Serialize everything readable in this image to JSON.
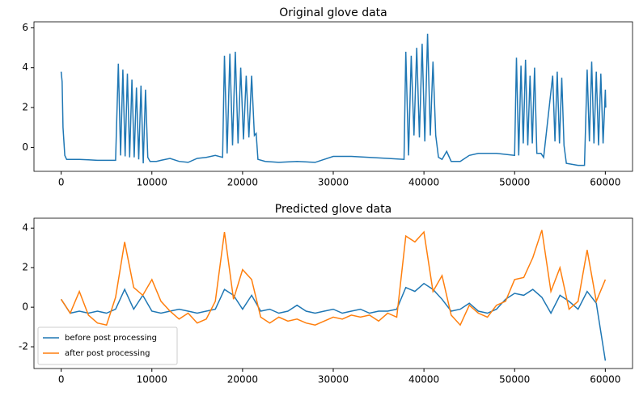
{
  "chart_data": [
    {
      "type": "line",
      "title": "Original glove data",
      "color": "#1f77b4",
      "x": [
        0,
        100,
        200,
        400,
        600,
        1000,
        2000,
        3000,
        4000,
        5000,
        6000,
        6300,
        6550,
        6800,
        7050,
        7300,
        7550,
        7800,
        8050,
        8300,
        8550,
        8800,
        9050,
        9300,
        9550,
        9800,
        10500,
        11000,
        12000,
        13000,
        14000,
        15000,
        16000,
        17000,
        17800,
        18000,
        18300,
        18600,
        18900,
        19200,
        19500,
        19800,
        20100,
        20400,
        20700,
        21000,
        21300,
        21500,
        21700,
        22500,
        24000,
        26000,
        28000,
        30000,
        32000,
        34000,
        36000,
        37800,
        38000,
        38300,
        38600,
        38900,
        39200,
        39500,
        39800,
        40100,
        40400,
        40700,
        41000,
        41300,
        41600,
        42000,
        42500,
        43000,
        44000,
        45000,
        46000,
        48000,
        50000,
        50200,
        50450,
        50700,
        50950,
        51200,
        51450,
        51700,
        51950,
        52200,
        52450,
        52900,
        53200,
        54200,
        54450,
        54700,
        54950,
        55200,
        55450,
        55700,
        57000,
        57700,
        58000,
        58250,
        58500,
        58750,
        59000,
        59250,
        59500,
        59750,
        60000,
        60050
      ],
      "values": [
        3.8,
        3.3,
        1.0,
        -0.4,
        -0.6,
        -0.6,
        -0.6,
        -0.62,
        -0.65,
        -0.65,
        -0.65,
        4.2,
        -0.4,
        3.9,
        -0.45,
        3.7,
        -0.5,
        3.4,
        -0.5,
        3.0,
        -0.6,
        3.1,
        -0.8,
        2.9,
        -0.5,
        -0.7,
        -0.7,
        -0.65,
        -0.55,
        -0.7,
        -0.75,
        -0.55,
        -0.5,
        -0.4,
        -0.5,
        4.6,
        -0.3,
        4.7,
        0.1,
        4.8,
        0.2,
        4.0,
        0.4,
        3.6,
        0.5,
        3.6,
        0.6,
        0.7,
        -0.6,
        -0.7,
        -0.75,
        -0.7,
        -0.75,
        -0.45,
        -0.45,
        -0.5,
        -0.55,
        -0.6,
        4.8,
        -0.4,
        4.6,
        0.6,
        5.0,
        0.5,
        5.2,
        0.3,
        5.7,
        0.6,
        4.3,
        0.6,
        -0.5,
        -0.6,
        -0.2,
        -0.7,
        -0.7,
        -0.4,
        -0.3,
        -0.3,
        -0.4,
        4.5,
        -0.4,
        4.1,
        0.2,
        4.4,
        0.1,
        3.6,
        0.2,
        4.0,
        -0.3,
        -0.3,
        -0.5,
        3.6,
        0.3,
        3.8,
        0.2,
        3.5,
        0.1,
        -0.8,
        -0.9,
        -0.9,
        3.9,
        0.3,
        4.3,
        0.2,
        3.8,
        0.1,
        3.7,
        0.2,
        2.9,
        2.0
      ],
      "xlim": [
        -3000,
        63000
      ],
      "xticks": [
        0,
        10000,
        20000,
        30000,
        40000,
        50000,
        60000
      ],
      "ylim": [
        -1.2,
        6.3
      ],
      "yticks": [
        0,
        2,
        4,
        6
      ]
    },
    {
      "type": "line",
      "title": "Predicted glove data",
      "legend": "lower left",
      "x": [
        0,
        1000,
        2000,
        3000,
        4000,
        5000,
        6000,
        7000,
        8000,
        9000,
        10000,
        11000,
        12000,
        13000,
        14000,
        15000,
        16000,
        17000,
        18000,
        19000,
        20000,
        21000,
        22000,
        23000,
        24000,
        25000,
        26000,
        27000,
        28000,
        29000,
        30000,
        31000,
        32000,
        33000,
        34000,
        35000,
        36000,
        37000,
        38000,
        39000,
        40000,
        41000,
        42000,
        43000,
        44000,
        45000,
        46000,
        47000,
        48000,
        49000,
        50000,
        51000,
        52000,
        53000,
        54000,
        55000,
        56000,
        57000,
        58000,
        59000,
        60000
      ],
      "series": [
        {
          "name": "before post processing",
          "color": "#1f77b4",
          "values": [
            0.4,
            -0.3,
            -0.2,
            -0.3,
            -0.2,
            -0.3,
            -0.1,
            0.9,
            -0.1,
            0.6,
            -0.2,
            -0.3,
            -0.2,
            -0.1,
            -0.2,
            -0.3,
            -0.2,
            -0.1,
            0.9,
            0.6,
            -0.1,
            0.6,
            -0.2,
            -0.1,
            -0.3,
            -0.2,
            0.1,
            -0.2,
            -0.3,
            -0.2,
            -0.1,
            -0.3,
            -0.2,
            -0.1,
            -0.3,
            -0.2,
            -0.2,
            -0.1,
            1.0,
            0.8,
            1.2,
            0.9,
            0.4,
            -0.2,
            -0.1,
            0.2,
            -0.2,
            -0.3,
            -0.1,
            0.4,
            0.7,
            0.6,
            0.9,
            0.5,
            -0.3,
            0.6,
            0.3,
            -0.1,
            0.8,
            0.2,
            -2.7
          ]
        },
        {
          "name": "after post processing",
          "color": "#ff7f0e",
          "values": [
            0.4,
            -0.3,
            0.8,
            -0.4,
            -0.8,
            -0.9,
            0.5,
            3.3,
            1.0,
            0.6,
            1.4,
            0.3,
            -0.2,
            -0.6,
            -0.3,
            -0.8,
            -0.6,
            0.3,
            3.8,
            0.4,
            1.9,
            1.4,
            -0.5,
            -0.8,
            -0.5,
            -0.7,
            -0.6,
            -0.8,
            -0.9,
            -0.7,
            -0.5,
            -0.6,
            -0.4,
            -0.5,
            -0.4,
            -0.7,
            -0.3,
            -0.5,
            3.6,
            3.3,
            3.8,
            0.8,
            1.6,
            -0.4,
            -0.9,
            0.1,
            -0.3,
            -0.5,
            0.1,
            0.3,
            1.4,
            1.5,
            2.5,
            3.9,
            0.8,
            2.0,
            -0.1,
            0.3,
            2.9,
            0.3,
            1.4
          ]
        }
      ],
      "xlim": [
        -3000,
        63000
      ],
      "xticks": [
        0,
        10000,
        20000,
        30000,
        40000,
        50000,
        60000
      ],
      "ylim": [
        -3.1,
        4.5
      ],
      "yticks": [
        -2,
        0,
        2,
        4
      ]
    }
  ]
}
